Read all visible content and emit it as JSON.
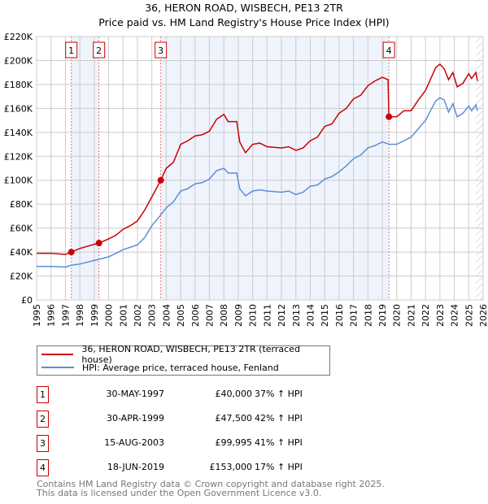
{
  "chart_data": {
    "type": "line",
    "title": "36, HERON ROAD, WISBECH, PE13 2TR",
    "subtitle": "Price paid vs. HM Land Registry's House Price Index (HPI)",
    "xlim": [
      1995,
      2026
    ],
    "ylim": [
      0,
      220000
    ],
    "x_ticks": [
      "1995",
      "1996",
      "1997",
      "1998",
      "1999",
      "2000",
      "2001",
      "2002",
      "2003",
      "2004",
      "2005",
      "2006",
      "2007",
      "2008",
      "2009",
      "2010",
      "2011",
      "2012",
      "2013",
      "2014",
      "2015",
      "2016",
      "2017",
      "2018",
      "2019",
      "2020",
      "2021",
      "2022",
      "2023",
      "2024",
      "2025",
      "2026"
    ],
    "y_ticks": [
      {
        "v": 0,
        "l": "£0"
      },
      {
        "v": 20000,
        "l": "£20K"
      },
      {
        "v": 40000,
        "l": "£40K"
      },
      {
        "v": 60000,
        "l": "£60K"
      },
      {
        "v": 80000,
        "l": "£80K"
      },
      {
        "v": 100000,
        "l": "£100K"
      },
      {
        "v": 120000,
        "l": "£120K"
      },
      {
        "v": 140000,
        "l": "£140K"
      },
      {
        "v": 160000,
        "l": "£160K"
      },
      {
        "v": 180000,
        "l": "£180K"
      },
      {
        "v": 200000,
        "l": "£200K"
      },
      {
        "v": 220000,
        "l": "£220K"
      }
    ],
    "grid": true,
    "series": [
      {
        "name": "36, HERON ROAD, WISBECH, PE13 2TR (terraced house)",
        "color": "#cc0000",
        "x": [
          1995,
          1996,
          1997,
          1997.41,
          1998,
          1999,
          1999.33,
          2000,
          2000.5,
          2001,
          2001.5,
          2002,
          2002.5,
          2003,
          2003.62,
          2004,
          2004.5,
          2005,
          2005.5,
          2006,
          2006.5,
          2007,
          2007.5,
          2008,
          2008.3,
          2008.9,
          2009.1,
          2009.5,
          2010,
          2010.5,
          2011,
          2012,
          2012.5,
          2013,
          2013.5,
          2014,
          2014.5,
          2015,
          2015.5,
          2016,
          2016.5,
          2017,
          2017.5,
          2018,
          2018.5,
          2019,
          2019.4,
          2019.46,
          2020,
          2020.5,
          2021,
          2021.5,
          2022,
          2022.3,
          2022.7,
          2023,
          2023.3,
          2023.6,
          2023.9,
          2024.2,
          2024.6,
          2025,
          2025.2,
          2025.5,
          2025.6
        ],
        "y": [
          39000,
          39000,
          38000,
          40000,
          43000,
          46500,
          47500,
          51000,
          54000,
          59000,
          62000,
          66000,
          75000,
          86000,
          99995,
          110000,
          115000,
          130000,
          133000,
          137000,
          138000,
          141000,
          151000,
          155000,
          149000,
          149000,
          132000,
          123000,
          130000,
          131000,
          128000,
          127000,
          128000,
          125000,
          127000,
          133000,
          136000,
          145000,
          147000,
          156000,
          160000,
          168000,
          171000,
          179000,
          183000,
          186000,
          184000,
          153000,
          153000,
          158000,
          158000,
          167000,
          175000,
          183000,
          194000,
          197000,
          193000,
          184000,
          190000,
          178000,
          181000,
          189000,
          185000,
          190000,
          183000
        ]
      },
      {
        "name": "HPI: Average price, terraced house, Fenland",
        "color": "#5b8fd6",
        "x": [
          1995,
          1996,
          1997,
          1997.41,
          1998,
          1999,
          2000,
          2001,
          2002,
          2002.5,
          2003,
          2003.62,
          2004,
          2004.5,
          2005,
          2005.5,
          2006,
          2006.5,
          2007,
          2007.5,
          2008,
          2008.3,
          2008.9,
          2009.1,
          2009.5,
          2010,
          2010.5,
          2011,
          2012,
          2012.5,
          2013,
          2013.5,
          2014,
          2014.5,
          2015,
          2015.5,
          2016,
          2016.5,
          2017,
          2017.5,
          2018,
          2018.5,
          2019,
          2019.5,
          2020,
          2020.5,
          2021,
          2021.5,
          2022,
          2022.3,
          2022.7,
          2023,
          2023.3,
          2023.6,
          2023.9,
          2024.2,
          2024.6,
          2025,
          2025.2,
          2025.5,
          2025.6
        ],
        "y": [
          28000,
          28000,
          27500,
          29000,
          30000,
          33000,
          36000,
          42000,
          46000,
          52000,
          62000,
          71000,
          77000,
          82000,
          91000,
          93000,
          97000,
          98000,
          101000,
          108000,
          110000,
          106000,
          106000,
          93000,
          87000,
          91000,
          92000,
          91000,
          90000,
          91000,
          88000,
          90000,
          95000,
          96000,
          101000,
          103000,
          107000,
          112000,
          118000,
          121000,
          127000,
          129000,
          132000,
          130000,
          130000,
          133000,
          136000,
          143000,
          150000,
          157000,
          166000,
          169000,
          167000,
          157000,
          164000,
          153000,
          156000,
          162000,
          158000,
          163000,
          158000
        ]
      }
    ],
    "sales": [
      {
        "n": "1",
        "x": 1997.41,
        "y": 40000,
        "date": "30-MAY-1997",
        "price": "£40,000",
        "hpi": "37% ↑ HPI"
      },
      {
        "n": "2",
        "x": 1999.33,
        "y": 47500,
        "date": "30-APR-1999",
        "price": "£47,500",
        "hpi": "42% ↑ HPI"
      },
      {
        "n": "3",
        "x": 2003.62,
        "y": 99995,
        "date": "15-AUG-2003",
        "price": "£99,995",
        "hpi": "41% ↑ HPI"
      },
      {
        "n": "4",
        "x": 2019.46,
        "y": 153000,
        "date": "18-JUN-2019",
        "price": "£153,000",
        "hpi": "17% ↑ HPI"
      }
    ],
    "shaded_ranges": [
      [
        1997.41,
        1999.33
      ],
      [
        2003.62,
        2019.46
      ]
    ],
    "hatched_from": 2025.5
  },
  "footer": {
    "line1": "Contains HM Land Registry data © Crown copyright and database right 2025.",
    "line2": "This data is licensed under the Open Government Licence v3.0."
  }
}
